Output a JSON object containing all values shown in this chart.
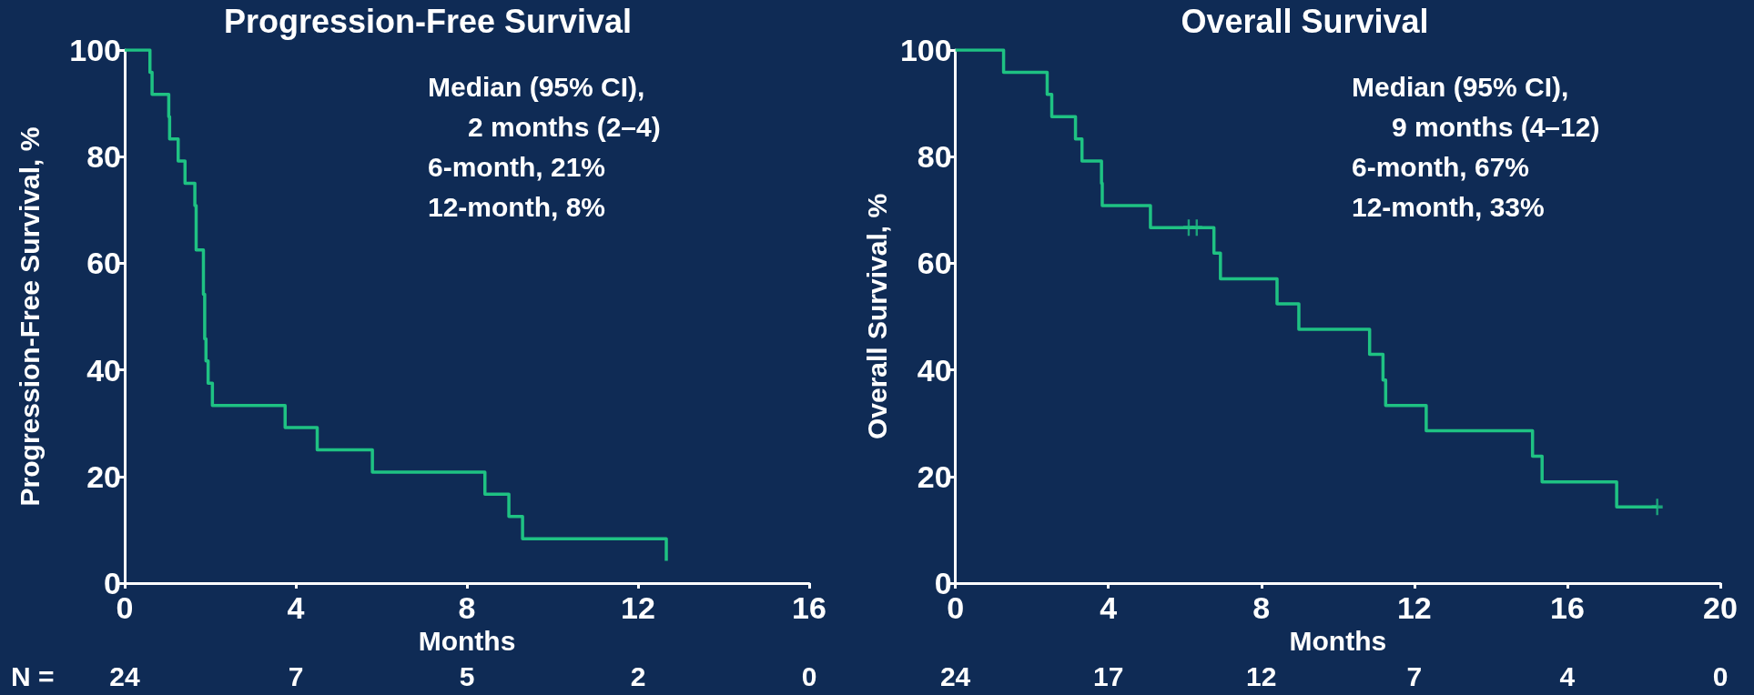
{
  "chart_data": [
    {
      "type": "step",
      "title": "Progression-Free Survival",
      "xlabel": "Months",
      "ylabel": "Progression-Free Survival, %",
      "x": [
        0,
        0.59,
        0.64,
        1.03,
        1.05,
        1.25,
        1.41,
        1.64,
        1.67,
        1.84,
        1.87,
        1.9,
        1.95,
        2.05,
        3.75,
        4.5,
        5.79,
        8.42,
        8.98,
        9.3,
        12.66
      ],
      "series": [
        {
          "color": "#1fc283",
          "values": [
            100,
            95.8,
            91.7,
            87.5,
            83.3,
            79.2,
            75,
            70.8,
            62.5,
            54.2,
            45.8,
            41.7,
            37.5,
            33.3,
            29.2,
            25,
            20.8,
            16.7,
            12.5,
            8.3,
            4.2
          ]
        }
      ],
      "xlim": [
        0,
        16
      ],
      "xticks": [
        0,
        4,
        8,
        12,
        16
      ],
      "ylim": [
        0,
        100
      ],
      "yticks": [
        0,
        20,
        40,
        60,
        80,
        100
      ],
      "grid": false,
      "marker": "none",
      "line_style": "solid",
      "annotations": [
        "Median (95% CI),",
        "2 months (2–4)",
        "6-month, 21%",
        "12-month, 8%",
        "N =",
        "24",
        "7",
        "5",
        "2",
        "0"
      ]
    },
    {
      "type": "step",
      "title": "Overall Survival",
      "xlabel": "Months",
      "ylabel": "Overall Survival, %",
      "series": [
        {
          "color": "#1fc283",
          "x": [
            0,
            1.26,
            2.4,
            2.52,
            3.14,
            3.31,
            3.82,
            3.84,
            5.1,
            6.76,
            6.93,
            8.41,
            8.98,
            10.83,
            11.18,
            11.25,
            12.31,
            15.09,
            15.34,
            17.29,
            18.35
          ],
          "values": [
            100,
            95.8,
            91.7,
            87.5,
            83.3,
            79.2,
            75,
            70.8,
            66.7,
            61.9,
            57.1,
            52.4,
            47.6,
            42.9,
            38.1,
            33.3,
            28.6,
            23.8,
            19.0,
            14.3,
            14.3
          ]
        },
        {
          "type": "scatter",
          "color": "#1fc283",
          "marker": "cross",
          "x": [
            6.1,
            6.31,
            18.35
          ],
          "values": [
            66.7,
            66.7,
            14.3
          ]
        }
      ],
      "xlim": [
        0,
        20
      ],
      "xticks": [
        0,
        4,
        8,
        12,
        16,
        20
      ],
      "ylim": [
        0,
        100
      ],
      "yticks": [
        0,
        20,
        40,
        60,
        80,
        100
      ],
      "grid": false,
      "marker": "none",
      "line_style": "solid",
      "annotations": [
        "Median (95% CI),",
        "9 months (4–12)",
        "6-month, 67%",
        "12-month, 33%",
        "24",
        "17",
        "12",
        "7",
        "4",
        "0"
      ]
    }
  ]
}
